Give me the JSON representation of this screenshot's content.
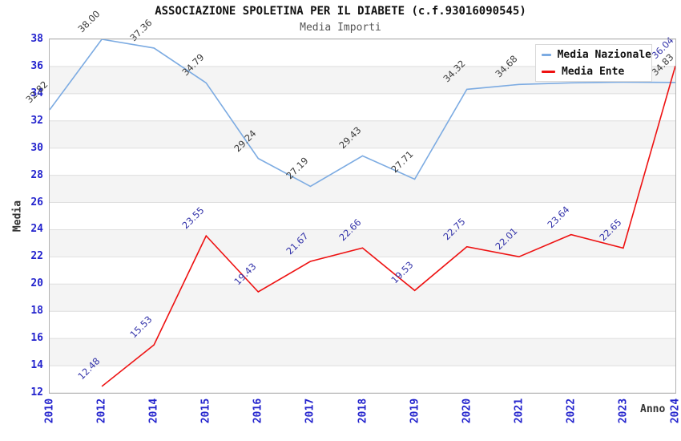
{
  "chart_data": {
    "type": "line",
    "title": "ASSOCIAZIONE SPOLETINA PER IL DIABETE (c.f.93016090545)",
    "subtitle": "Media Importi",
    "xlabel": "Anno",
    "ylabel": "Media",
    "categories": [
      "2010",
      "2012",
      "2014",
      "2015",
      "2016",
      "2017",
      "2018",
      "2019",
      "2020",
      "2021",
      "2022",
      "2023",
      "2024"
    ],
    "ylim": [
      12,
      38
    ],
    "ytick_step": 2,
    "grid": "horizontal-only",
    "band_fill": "#f4f4f4",
    "gridline_color": "#dedede",
    "axis_tick_color": "#2323cd",
    "legend_position": "top-right-inside",
    "series": [
      {
        "name": "Media Nazionale",
        "color": "#7cabe2",
        "label_color": "#3c3c3c",
        "values": [
          32.82,
          38.0,
          37.36,
          34.79,
          29.24,
          27.19,
          29.43,
          27.71,
          34.32,
          34.68,
          34.8,
          34.85,
          34.83
        ],
        "point_labels": [
          "32.82",
          "38.00",
          "37.36",
          "34.79",
          "29.24",
          "27.19",
          "29.43",
          "27.71",
          "34.32",
          "34.68",
          null,
          null,
          "34.83"
        ]
      },
      {
        "name": "Media Ente",
        "color": "#ee1111",
        "label_color": "#3434aa",
        "values": [
          null,
          12.48,
          15.53,
          23.55,
          19.43,
          21.67,
          22.66,
          19.53,
          22.75,
          22.01,
          23.64,
          22.65,
          36.04
        ],
        "point_labels": [
          null,
          "12.48",
          "15.53",
          "23.55",
          "19.43",
          "21.67",
          "22.66",
          "19.53",
          "22.75",
          "22.01",
          "23.64",
          "22.65",
          "36.04"
        ]
      }
    ]
  }
}
